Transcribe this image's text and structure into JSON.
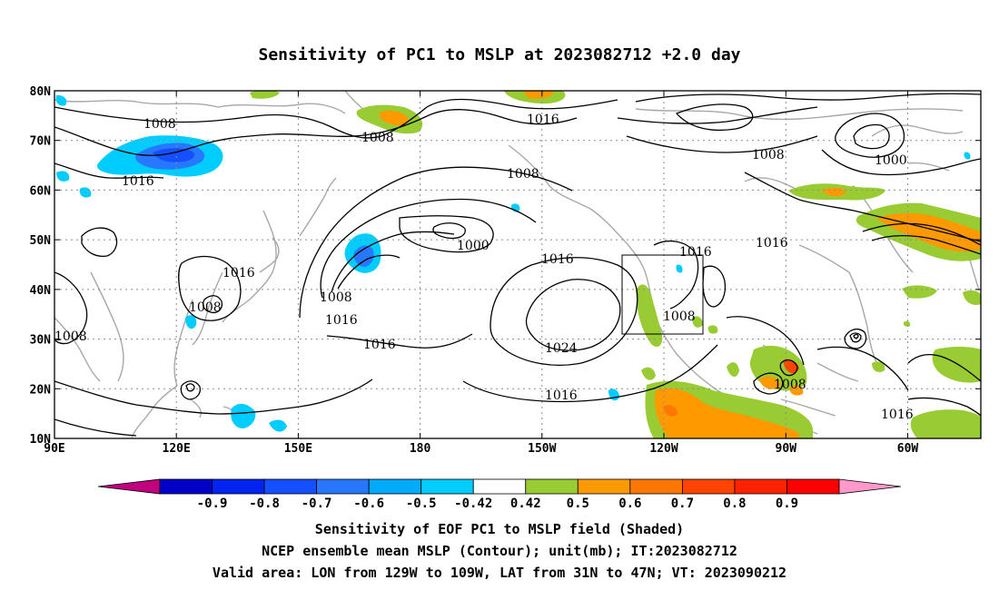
{
  "title": "Sensitivity of PC1 to MSLP at 2023082712 +2.0 day",
  "lat_labels": [
    "80N",
    "70N",
    "60N",
    "50N",
    "40N",
    "30N",
    "20N",
    "10N"
  ],
  "lon_labels": [
    "90E",
    "120E",
    "150E",
    "180",
    "150W",
    "120W",
    "90W",
    "60W"
  ],
  "contour_labels": [
    {
      "text": "1008"
    },
    {
      "text": "1008"
    },
    {
      "text": "1016"
    },
    {
      "text": "1016"
    },
    {
      "text": "1008"
    },
    {
      "text": "1000"
    },
    {
      "text": "1008"
    },
    {
      "text": "1000"
    },
    {
      "text": "1016"
    },
    {
      "text": "1016"
    },
    {
      "text": "1016"
    },
    {
      "text": "1008"
    },
    {
      "text": "1008"
    },
    {
      "text": "1016"
    },
    {
      "text": "1008"
    },
    {
      "text": "1016"
    },
    {
      "text": "1024"
    },
    {
      "text": "1016"
    },
    {
      "text": "1008"
    },
    {
      "text": "1016"
    },
    {
      "text": "1008"
    }
  ],
  "colorbar": {
    "colors": [
      "#c0007f",
      "#0000c8",
      "#0023f0",
      "#1450ff",
      "#2878ff",
      "#00aaff",
      "#00cdff",
      "#ffffff",
      "#99cc33",
      "#ff9900",
      "#ff7700",
      "#ff4400",
      "#ff2200",
      "#ff0000",
      "#ff99cc"
    ],
    "tick_labels": [
      "-0.9",
      "-0.8",
      "-0.7",
      "-0.6",
      "-0.5",
      "-0.42",
      "0.42",
      "0.5",
      "0.6",
      "0.7",
      "0.8",
      "0.9"
    ]
  },
  "caption": {
    "line1": "Sensitivity of EOF PC1 to MSLP field (Shaded)",
    "line2": "NCEP ensemble mean MSLP (Contour); unit(mb); IT:2023082712",
    "line3": "Valid area: LON from 129W to 109W, LAT from 31N to 47N; VT: 2023090212"
  },
  "valid_area_box": {
    "lon": [
      "129W",
      "109W"
    ],
    "lat": [
      "31N",
      "47N"
    ]
  }
}
